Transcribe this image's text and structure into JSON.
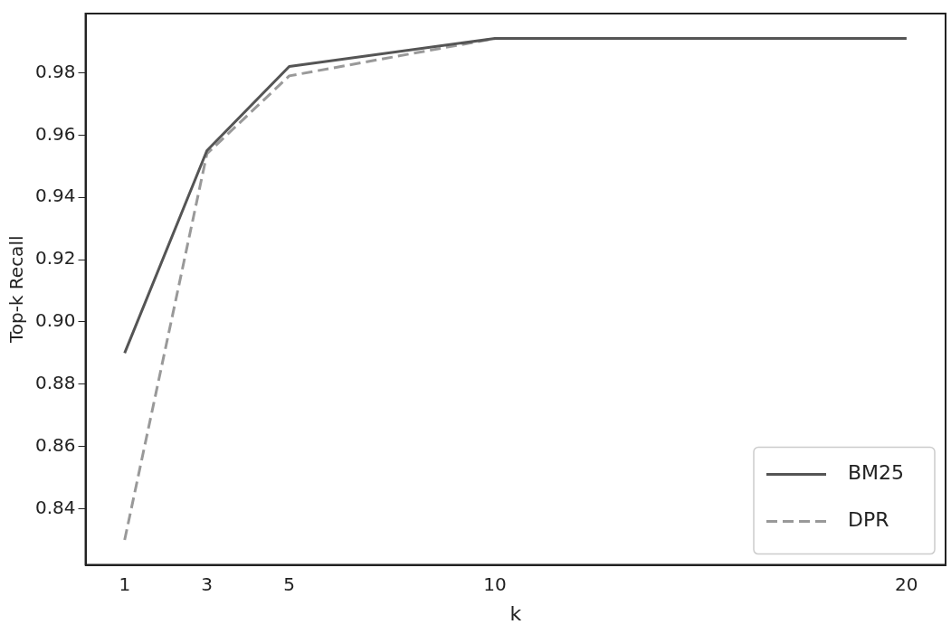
{
  "chart_data": {
    "type": "line",
    "xlabel": "k",
    "ylabel": "Top-k Recall",
    "x": [
      1,
      3,
      5,
      10,
      20
    ],
    "series": [
      {
        "name": "BM25",
        "color": "#555555",
        "values": [
          0.89,
          0.955,
          0.982,
          0.991,
          0.991
        ],
        "line_style": "solid"
      },
      {
        "name": "DPR",
        "color": "#999999",
        "values": [
          0.83,
          0.954,
          0.979,
          0.991,
          0.991
        ],
        "line_style": "dashed"
      }
    ],
    "xlim": [
      0.05,
      20.95
    ],
    "xticks": [
      1,
      3,
      5,
      10,
      20
    ],
    "ylim": [
      0.822,
      0.999
    ],
    "yticks": [
      {
        "value": 0.84,
        "label": "0.84"
      },
      {
        "value": 0.86,
        "label": "0.86"
      },
      {
        "value": 0.88,
        "label": "0.88"
      },
      {
        "value": 0.9,
        "label": "0.90"
      },
      {
        "value": 0.92,
        "label": "0.92"
      },
      {
        "value": 0.94,
        "label": "0.94"
      },
      {
        "value": 0.96,
        "label": "0.96"
      },
      {
        "value": 0.98,
        "label": "0.98"
      }
    ],
    "grid": false,
    "legend": "bottom right",
    "marker": "none"
  }
}
